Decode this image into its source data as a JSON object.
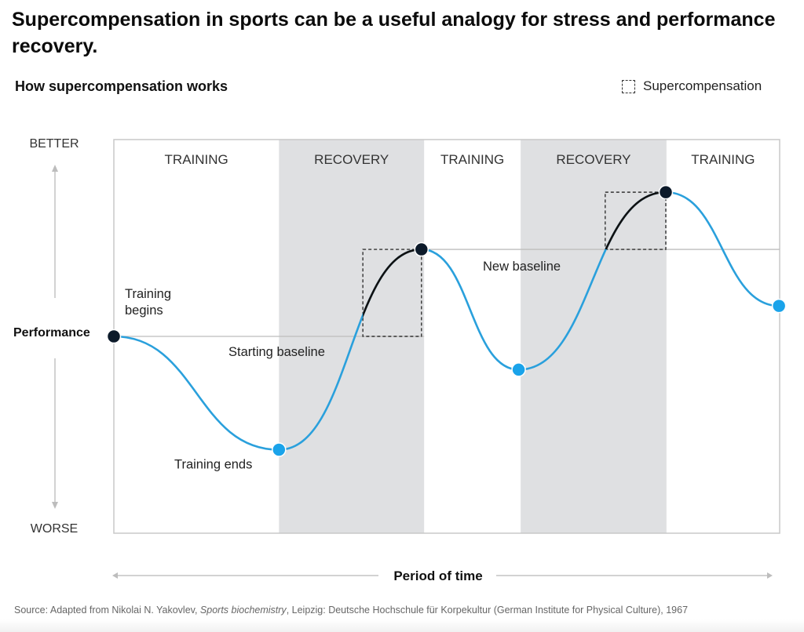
{
  "header": {
    "title": "Supercompensation in sports can be a useful analogy for stress and performance recovery.",
    "subtitle": "How supercompensation works"
  },
  "legend": {
    "label": "Supercompensation"
  },
  "colors": {
    "curve": "#2aa0dc",
    "supercompensation_curve": "#111111",
    "dark_point": "#0c1a2a",
    "blue_point": "#1aa3ea",
    "recovery_band": "#dfe0e2",
    "frame": "#c8c8c8",
    "baseline": "#bdbdbd",
    "axis_arrow": "#c4c4c4"
  },
  "chart_data": {
    "type": "line",
    "title": "How supercompensation works",
    "xlabel": "Period of time",
    "ylabel": "Performance",
    "y_axis_top_label": "BETTER",
    "y_axis_bottom_label": "WORSE",
    "x_range": [
      0,
      100
    ],
    "y_range": [
      0,
      100
    ],
    "phases": [
      {
        "label": "TRAINING",
        "start": 0,
        "end": 24.8,
        "shaded": false
      },
      {
        "label": "RECOVERY",
        "start": 24.8,
        "end": 46.6,
        "shaded": true
      },
      {
        "label": "TRAINING",
        "start": 46.6,
        "end": 61.1,
        "shaded": false
      },
      {
        "label": "RECOVERY",
        "start": 61.1,
        "end": 83.0,
        "shaded": true
      },
      {
        "label": "TRAINING",
        "start": 83.0,
        "end": 100,
        "shaded": false
      }
    ],
    "key_points": [
      {
        "x": 0,
        "y": 50,
        "kind": "dark"
      },
      {
        "x": 24.8,
        "y": 17.3,
        "kind": "blue"
      },
      {
        "x": 46.2,
        "y": 75.1,
        "kind": "dark"
      },
      {
        "x": 60.8,
        "y": 40.4,
        "kind": "blue"
      },
      {
        "x": 82.9,
        "y": 91.6,
        "kind": "dark"
      },
      {
        "x": 99.9,
        "y": 58.8,
        "kind": "blue"
      }
    ],
    "baselines": [
      {
        "label": "Starting baseline",
        "y": 50,
        "x_start": 0,
        "x_end": 46.6
      },
      {
        "label": "New baseline",
        "y": 75.1,
        "x_start": 46.2,
        "x_end": 100
      }
    ],
    "supercompensation_boxes": [
      {
        "x_start": 37.4,
        "x_end": 46.2,
        "y_start": 50,
        "y_end": 75.1
      },
      {
        "x_start": 73.8,
        "x_end": 82.9,
        "y_start": 75.1,
        "y_end": 91.6
      }
    ],
    "annotations": [
      {
        "text": "Training begins",
        "x": 0,
        "y": 50
      },
      {
        "text": "Starting baseline",
        "x": 17,
        "y": 50
      },
      {
        "text": "Training ends",
        "x": 24.8,
        "y": 17.3
      },
      {
        "text": "New baseline",
        "x": 55,
        "y": 75.1
      }
    ],
    "grid": false,
    "legend_position": "top-right"
  },
  "source": {
    "prefix": "Source: Adapted from Nikolai N. Yakovlev, ",
    "italic": "Sports biochemistry",
    "suffix": ", Leipzig: Deutsche Hochschule für Korpekultur (German Institute for Physical Culture), 1967"
  }
}
